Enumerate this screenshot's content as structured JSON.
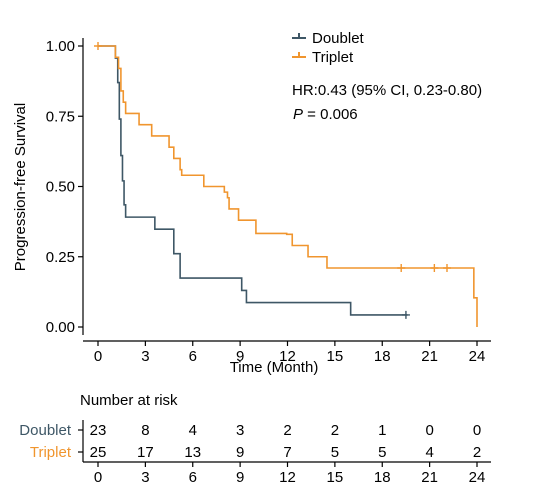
{
  "chart_data": {
    "type": "line",
    "subtype": "kaplan-meier",
    "xlabel": "Time (Month)",
    "ylabel": "Progression-free Survival",
    "xlim": [
      0,
      24
    ],
    "ylim": [
      0,
      1
    ],
    "x_ticks": [
      0,
      3,
      6,
      9,
      12,
      15,
      18,
      21,
      24
    ],
    "y_ticks": [
      "0.00",
      "0.25",
      "0.50",
      "0.75",
      "1.00"
    ],
    "y_tick_values": [
      0,
      0.25,
      0.5,
      0.75,
      1.0
    ],
    "grid": false,
    "legend_position": "top-right",
    "annotation": {
      "hr_text": "HR:0.43 (95% CI, 0.23-0.80)",
      "p_label": "P",
      "p_value": " = 0.006"
    },
    "series": [
      {
        "name": "Doublet",
        "color": "#3e5766",
        "steps": [
          [
            0,
            1.0
          ],
          [
            1.1,
            0.957
          ],
          [
            1.25,
            0.87
          ],
          [
            1.35,
            0.74
          ],
          [
            1.45,
            0.61
          ],
          [
            1.55,
            0.52
          ],
          [
            1.65,
            0.435
          ],
          [
            1.75,
            0.39
          ],
          [
            3.6,
            0.348
          ],
          [
            3.9,
            0.348
          ],
          [
            3.9,
            0.348
          ],
          [
            3.9,
            0.348
          ],
          [
            3.9,
            0.348
          ],
          [
            3.95,
            0.348
          ],
          [
            4.0,
            0.348
          ],
          [
            4.05,
            0.348
          ],
          [
            4.1,
            0.348
          ],
          [
            4.15,
            0.348
          ],
          [
            4.2,
            0.348
          ],
          [
            4.3,
            0.348
          ],
          [
            4.4,
            0.348
          ],
          [
            4.5,
            0.348
          ],
          [
            4.6,
            0.348
          ],
          [
            4.7,
            0.348
          ],
          [
            4.8,
            0.348
          ],
          [
            4.9,
            0.348
          ],
          [
            5.0,
            0.348
          ]
        ],
        "censored": [
          [
            19.5,
            0.087
          ]
        ]
      },
      {
        "name": "Triplet",
        "color": "#f0952e",
        "steps": [
          [
            0,
            1.0
          ],
          [
            1.1,
            0.96
          ],
          [
            1.3,
            0.92
          ],
          [
            1.45,
            0.84
          ],
          [
            1.6,
            0.8
          ],
          [
            1.75,
            0.76
          ],
          [
            2.0,
            0.76
          ],
          [
            2.4,
            0.76
          ],
          [
            2.6,
            0.72
          ],
          [
            3.4,
            0.72
          ],
          [
            3.4,
            0.72
          ],
          [
            3.4,
            0.72
          ],
          [
            3.4,
            0.72
          ],
          [
            3.4,
            0.72
          ],
          [
            3.4,
            0.72
          ],
          [
            3.4,
            0.72
          ],
          [
            3.4,
            0.72
          ],
          [
            3.4,
            0.72
          ]
        ],
        "censored": [
          [
            0,
            1.0
          ],
          [
            19.2,
            0.21
          ],
          [
            21.3,
            0.21
          ],
          [
            22.1,
            0.21
          ]
        ]
      }
    ],
    "risk_table": {
      "title": "Number at risk",
      "times": [
        0,
        3,
        6,
        9,
        12,
        15,
        18,
        21,
        24
      ],
      "rows": [
        {
          "name": "Doublet",
          "color": "#3e5766",
          "values": [
            23,
            8,
            4,
            3,
            2,
            2,
            1,
            0,
            0
          ]
        },
        {
          "name": "Triplet",
          "color": "#f0952e",
          "values": [
            25,
            17,
            13,
            9,
            7,
            5,
            5,
            4,
            2
          ]
        }
      ]
    }
  }
}
